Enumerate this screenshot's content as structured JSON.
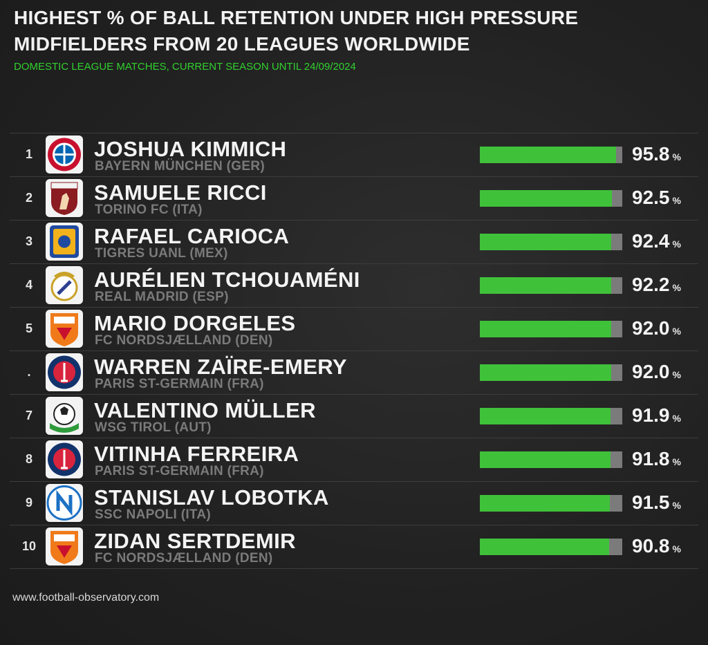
{
  "title_line1": "HIGHEST % OF BALL RETENTION UNDER HIGH PRESSURE",
  "title_line2": "MIDFIELDERS FROM 20 LEAGUES WORLDWIDE",
  "subtitle": "DOMESTIC LEAGUE MATCHES, CURRENT SEASON UNTIL 24/09/2024",
  "footer": "www.football-observatory.com",
  "unit": "%",
  "colors": {
    "bar": "#3fc23a",
    "track": "#7b7b7b",
    "subtitle": "#31d12e"
  },
  "chart_data": {
    "type": "bar",
    "title": "HIGHEST % OF BALL RETENTION UNDER HIGH PRESSURE",
    "subtitle": "MIDFIELDERS FROM 20 LEAGUES WORLDWIDE",
    "xlabel": "",
    "ylabel": "",
    "xlim": [
      0,
      100
    ],
    "rows": [
      {
        "rank": "1",
        "player": "JOSHUA KIMMICH",
        "club": "BAYERN MÜNCHEN (GER)",
        "value": 95.8,
        "value_label": "95.8",
        "logo": "bayern-icon"
      },
      {
        "rank": "2",
        "player": "SAMUELE RICCI",
        "club": "TORINO FC (ITA)",
        "value": 92.5,
        "value_label": "92.5",
        "logo": "torino-icon"
      },
      {
        "rank": "3",
        "player": "RAFAEL CARIOCA",
        "club": "TIGRES UANL (MEX)",
        "value": 92.4,
        "value_label": "92.4",
        "logo": "tigres-icon"
      },
      {
        "rank": "4",
        "player": "AURÉLIEN TCHOUAMÉNI",
        "club": "REAL MADRID (ESP)",
        "value": 92.2,
        "value_label": "92.2",
        "logo": "real-madrid-icon"
      },
      {
        "rank": "5",
        "player": "MARIO DORGELES",
        "club": "FC NORDSJÆLLAND (DEN)",
        "value": 92.0,
        "value_label": "92.0",
        "logo": "nordsjaelland-icon"
      },
      {
        "rank": ".",
        "player": "WARREN ZAÏRE-EMERY",
        "club": "PARIS ST-GERMAIN (FRA)",
        "value": 92.0,
        "value_label": "92.0",
        "logo": "psg-icon"
      },
      {
        "rank": "7",
        "player": "VALENTINO MÜLLER",
        "club": "WSG TIROL (AUT)",
        "value": 91.9,
        "value_label": "91.9",
        "logo": "wsg-tirol-icon"
      },
      {
        "rank": "8",
        "player": "VITINHA FERREIRA",
        "club": "PARIS ST-GERMAIN (FRA)",
        "value": 91.8,
        "value_label": "91.8",
        "logo": "psg-icon"
      },
      {
        "rank": "9",
        "player": "STANISLAV LOBOTKA",
        "club": "SSC NAPOLI (ITA)",
        "value": 91.5,
        "value_label": "91.5",
        "logo": "napoli-icon"
      },
      {
        "rank": "10",
        "player": "ZIDAN SERTDEMIR",
        "club": "FC NORDSJÆLLAND (DEN)",
        "value": 90.8,
        "value_label": "90.8",
        "logo": "nordsjaelland-icon"
      }
    ]
  }
}
